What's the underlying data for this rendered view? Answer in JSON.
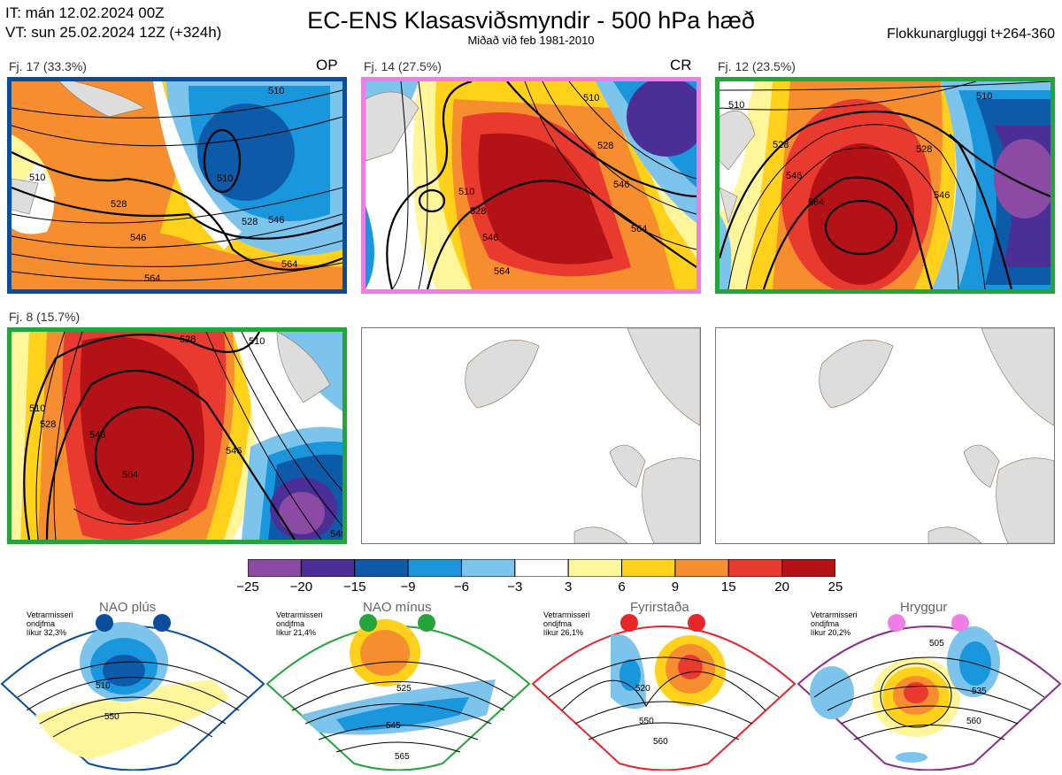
{
  "header": {
    "it_line": "IT: mán 12.02.2024 00Z",
    "vt_line": "VT: sun 25.02.2024 12Z  (+324h)",
    "title": "EC-ENS Klasasviðsmyndir - 500 hPa hæð",
    "subtitle": "Miðað við feb 1981-2010",
    "window": "Flokkunargluggi t+264-360"
  },
  "panels": [
    {
      "label": "Fj. 17 (33.3%)",
      "tag": "OP",
      "border": "#0a4d9c",
      "contours": [
        "510",
        "510",
        "510",
        "528",
        "546",
        "528",
        "546",
        "564",
        "564"
      ]
    },
    {
      "label": "Fj. 14 (27.5%)",
      "tag": "CR",
      "border": "#ee7ee6",
      "contours": [
        "510",
        "528",
        "546",
        "564",
        "510",
        "528",
        "546",
        "564"
      ]
    },
    {
      "label": "Fj. 12 (23.5%)",
      "tag": "",
      "border": "#26a43c",
      "contours": [
        "510",
        "510",
        "528",
        "546",
        "564",
        "528",
        "546"
      ]
    },
    {
      "label": "Fj. 8 (15.7%)",
      "tag": "",
      "border": "#26a43c",
      "contours": [
        "510",
        "528",
        "546",
        "564",
        "510",
        "528",
        "546",
        "546"
      ]
    }
  ],
  "colorbar": {
    "ticks": [
      "−25",
      "−20",
      "−15",
      "−9",
      "−6",
      "−3",
      "3",
      "6",
      "9",
      "15",
      "20",
      "25"
    ],
    "colors": [
      "#8b4aa3",
      "#4b2f96",
      "#0d5aa8",
      "#1a96dc",
      "#7cc4ec",
      "#ffffff",
      "#fff59a",
      "#ffd11a",
      "#f68e2f",
      "#e83a2e",
      "#b31217"
    ]
  },
  "regimes": [
    {
      "name": "NAO plús",
      "note": [
        "Vetrarmisseri",
        "ondjfma",
        "líkur 32,3%"
      ],
      "color": "#0a4d9c",
      "contours": [
        "510",
        "550"
      ]
    },
    {
      "name": "NAO mínus",
      "note": [
        "Vetrarmisseri",
        "ondjfma",
        "líkur 21,4%"
      ],
      "color": "#26a43c",
      "contours": [
        "525",
        "545",
        "565"
      ]
    },
    {
      "name": "Fyrirstaða",
      "note": [
        "Vetrarmisseri",
        "ondjfma",
        "líkur 26,1%"
      ],
      "color": "#e8262a",
      "contours": [
        "520",
        "550",
        "560"
      ]
    },
    {
      "name": "Hryggur",
      "note": [
        "Vetrarmisseri",
        "ondjfma",
        "líkur 20,2%"
      ],
      "color": "#8b2f8f",
      "contours": [
        "505",
        "535",
        "560"
      ]
    }
  ]
}
